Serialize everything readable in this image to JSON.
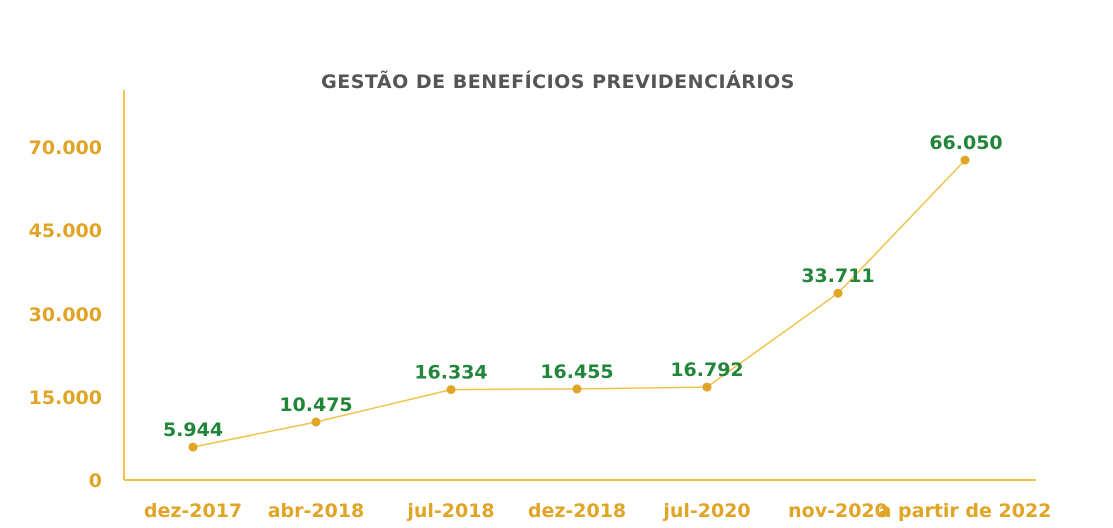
{
  "chart_data": {
    "type": "line",
    "title": "GESTÃO DE BENEFÍCIOS PREVIDENCIÁRIOS",
    "categories": [
      "dez-2017",
      "abr-2018",
      "jul-2018",
      "dez-2018",
      "jul-2020",
      "nov-2020",
      "a partir de 2022"
    ],
    "values": [
      5944,
      10475,
      16334,
      16455,
      16792,
      33711,
      66050
    ],
    "value_labels": [
      "5.944",
      "10.475",
      "16.334",
      "16.455",
      "16.792",
      "33.711",
      "66.050"
    ],
    "y_ticks": [
      0,
      15000,
      30000,
      45000,
      70000
    ],
    "y_tick_labels": [
      "0",
      "15.000",
      "30.000",
      "45.000",
      "70.000"
    ],
    "xlabel": "",
    "ylabel": "",
    "grid": false,
    "legend": "none"
  },
  "colors": {
    "title": "#555555",
    "axis": "#f1c24a",
    "line": "#f1c24a",
    "marker": "#e0a526",
    "tick_text": "#e0a526",
    "data_label": "#22863a"
  }
}
